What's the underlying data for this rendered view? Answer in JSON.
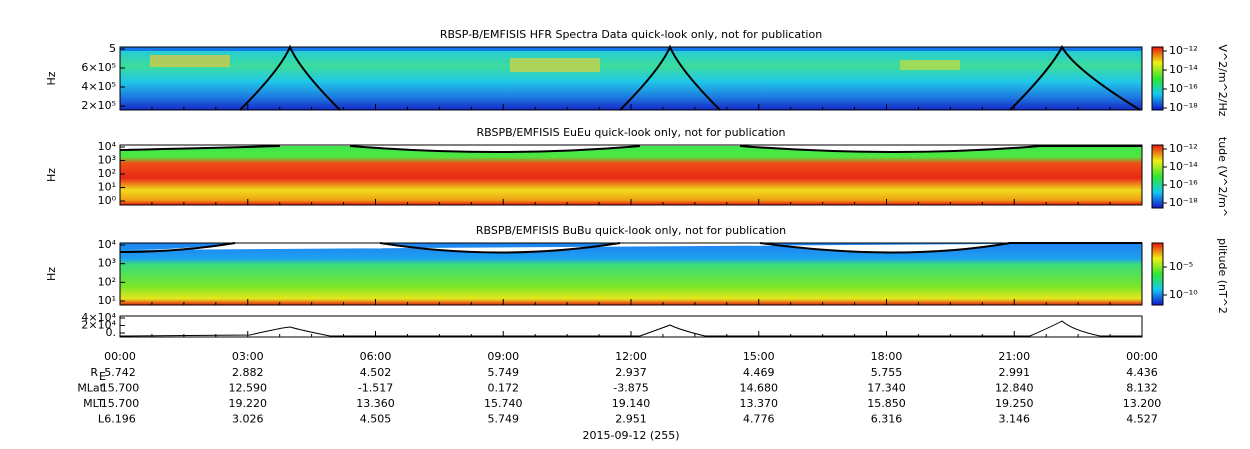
{
  "panels": [
    {
      "title": "RBSP-B/EMFISIS  HFR Spectra Data quick-look only, not for publication",
      "ylabel": "Hz",
      "yticks": [
        "5",
        "6×10⁵",
        "4×10⁵",
        "2×10⁵"
      ],
      "cbar_label": "V^2/m^2/Hz",
      "cbar_ticks": [
        "10⁻¹²",
        "10⁻¹⁴",
        "10⁻¹⁶",
        "10⁻¹⁸"
      ]
    },
    {
      "title": "RBSPB/EMFISIS  EuEu quick-look only, not for publication",
      "ylabel": "Hz",
      "yticks": [
        "10⁴",
        "10³",
        "10²",
        "10¹",
        "10⁰"
      ],
      "cbar_label": "tude (V^2/m^",
      "cbar_ticks": [
        "10⁻¹²",
        "10⁻¹⁴",
        "10⁻¹⁶",
        "10⁻¹⁸"
      ]
    },
    {
      "title": "RBSPB/EMFISIS  BuBu quick-look only, not for publication",
      "ylabel": "Hz",
      "yticks": [
        "10⁴",
        "10³",
        "10²",
        "10¹"
      ],
      "cbar_label": "plitude (nT^2",
      "cbar_ticks": [
        "10⁻⁵",
        "10⁻¹⁰"
      ]
    },
    {
      "yticks": [
        "4×10⁴",
        "2×10⁴",
        "0."
      ]
    }
  ],
  "times": [
    "00:00",
    "03:00",
    "06:00",
    "09:00",
    "12:00",
    "15:00",
    "18:00",
    "21:00",
    "00:00"
  ],
  "ephemeris": [
    {
      "label": "R",
      "sub": "E",
      "values": [
        "5.742",
        "2.882",
        "4.502",
        "5.749",
        "2.937",
        "4.469",
        "5.755",
        "2.991",
        "4.436"
      ]
    },
    {
      "label": "MLat",
      "values": [
        "15.700",
        "12.590",
        "-1.517",
        "0.172",
        "-3.875",
        "14.680",
        "17.340",
        "12.840",
        "8.132"
      ]
    },
    {
      "label": "MLT",
      "values": [
        "15.700",
        "19.220",
        "13.360",
        "15.740",
        "19.140",
        "13.370",
        "15.850",
        "19.250",
        "13.200"
      ]
    },
    {
      "label": "L",
      "values": [
        "6.196",
        "3.026",
        "4.505",
        "5.749",
        "2.951",
        "4.776",
        "6.316",
        "3.146",
        "4.527"
      ]
    }
  ],
  "date": "2015-09-12 (255)"
}
